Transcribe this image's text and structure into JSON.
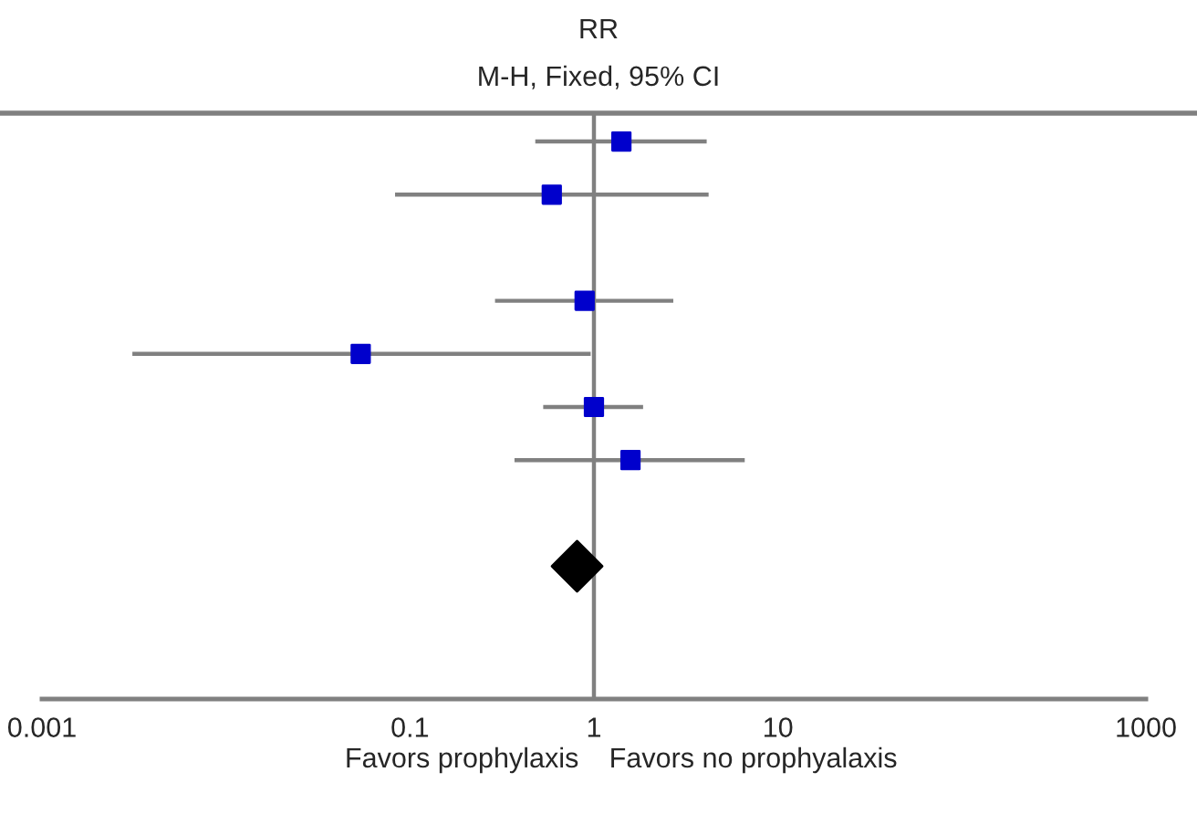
{
  "chart_data": {
    "type": "scatter",
    "orientation": "horizontal",
    "title": "RR",
    "subtitle": "M-H, Fixed, 95% CI",
    "categories": [
      null,
      null,
      null,
      null,
      null,
      null,
      null,
      null,
      null,
      null,
      null
    ],
    "series": [
      {
        "color": "#0000cc",
        "marker": "square",
        "values": [
          1.41,
          0.59,
          null,
          0.89,
          0.054,
          1.0,
          1.58,
          null,
          null,
          null,
          null
        ],
        "errors": [
          [
            0.48,
            4.1
          ],
          [
            0.083,
            4.2
          ],
          null,
          [
            0.29,
            2.7
          ],
          [
            0.0031,
            0.96
          ],
          [
            0.53,
            1.85
          ],
          [
            0.37,
            6.6
          ],
          null,
          null,
          null,
          null
        ]
      },
      {
        "color": "#000000",
        "marker": "diamond",
        "values": [
          null,
          null,
          null,
          null,
          null,
          null,
          null,
          null,
          0.81,
          null,
          null
        ]
      }
    ],
    "log": "x",
    "xlim": [
      0.001,
      1000
    ],
    "xticks": [
      0.001,
      0.1,
      1,
      10,
      1000
    ],
    "tick_labels": "x",
    "grid": false,
    "legend": false,
    "ref_lines": [
      {
        "axis": "x",
        "value": 1,
        "color": "#808080"
      }
    ],
    "annotations": [
      "Favors prophylaxis",
      "Favors no prophyalaxis"
    ]
  }
}
